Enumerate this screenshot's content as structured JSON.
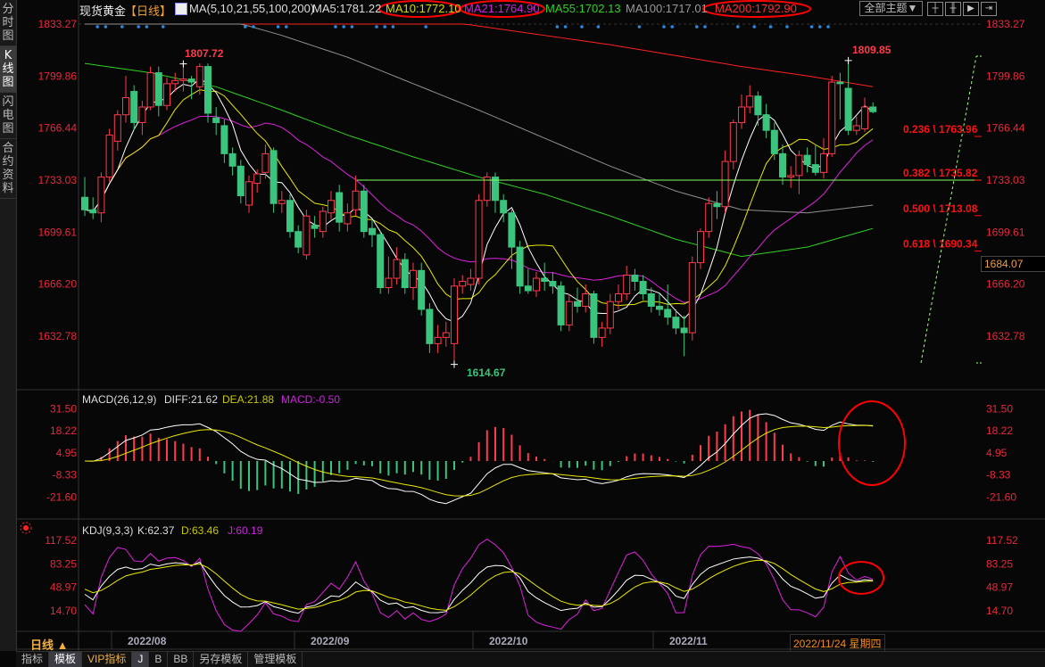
{
  "sidebar": {
    "tabs": [
      {
        "label": "分时图",
        "active": false
      },
      {
        "label": "K线图",
        "active": true
      },
      {
        "label": "闪电图",
        "active": false
      },
      {
        "label": "合约资料",
        "active": false
      }
    ]
  },
  "header": {
    "symbol": "现货黄金",
    "period_tag": "【日线】",
    "ma_params": "MA(5,10,21,55,100,200)",
    "ma5": "MA5:1781.22",
    "ma10": "MA10:1772.10",
    "ma21": "MA21:1764.90",
    "ma55": "MA55:1702.13",
    "ma100": "MA100:1717.01",
    "ma200": "MA200:1792.90",
    "theme_button": "全部主题▼"
  },
  "colors": {
    "up": "#ff3b4b",
    "down": "#3ac47d",
    "ma5": "#ffffff",
    "ma10": "#e8e800",
    "ma21": "#e020e0",
    "ma55": "#30d020",
    "ma100": "#909090",
    "ma200": "#ff2020",
    "axis_text": "#e8283c",
    "highlight": "#ff0000"
  },
  "price_axis": {
    "ticks": [
      "1833.27",
      "1799.86",
      "1766.44",
      "1733.03",
      "1699.61",
      "1666.20",
      "1632.78"
    ],
    "current_price": "1684.07"
  },
  "annotations": {
    "high1": "1807.72",
    "high2": "1809.85",
    "low": "1614.67"
  },
  "fibonacci": [
    {
      "label": "0.236 \\ 1763.96"
    },
    {
      "label": "0.382 \\ 1735.82"
    },
    {
      "label": "0.500 \\ 1713.08"
    },
    {
      "label": "0.618 \\ 1690.34"
    }
  ],
  "macd": {
    "title": "MACD(26,12,9)",
    "diff": "DIFF:21.62",
    "dea": "DEA:21.88",
    "macd": "MACD:-0.50",
    "ticks": [
      "31.50",
      "18.22",
      "4.95",
      "-8.33",
      "-21.60"
    ]
  },
  "kdj": {
    "title": "KDJ(9,3,3)",
    "k": "K:62.37",
    "d": "D:63.46",
    "j": "J:60.19",
    "ticks": [
      "117.52",
      "83.25",
      "48.97",
      "14.70"
    ]
  },
  "date_axis": {
    "labels": [
      "2022/08",
      "2022/09",
      "2022/10",
      "2022/11"
    ],
    "period": "日线 ▲",
    "current_date": "2022/11/24 星期四"
  },
  "bottom_tabs": [
    {
      "label": "指标"
    },
    {
      "label": "模板",
      "active": true
    },
    {
      "label": "VIP指标",
      "vip": true
    },
    {
      "label": "J",
      "active": true
    },
    {
      "label": "B"
    },
    {
      "label": "BB"
    },
    {
      "label": "另存模板"
    },
    {
      "label": "管理模板"
    }
  ],
  "chart_data": {
    "type": "candlestick",
    "ylim": [
      1614.67,
      1833.27
    ],
    "candles_ohlc": [
      [
        1722,
        1735,
        1710,
        1714
      ],
      [
        1714,
        1722,
        1708,
        1712
      ],
      [
        1712,
        1738,
        1706,
        1735
      ],
      [
        1735,
        1766,
        1732,
        1762
      ],
      [
        1758,
        1778,
        1752,
        1775
      ],
      [
        1775,
        1800,
        1770,
        1786
      ],
      [
        1790,
        1794,
        1765,
        1770
      ],
      [
        1770,
        1784,
        1762,
        1780
      ],
      [
        1780,
        1806,
        1778,
        1802
      ],
      [
        1802,
        1806,
        1774,
        1781
      ],
      [
        1781,
        1799,
        1778,
        1795
      ],
      [
        1795,
        1802,
        1790,
        1797
      ],
      [
        1797,
        1807.72,
        1790,
        1798
      ],
      [
        1798,
        1800,
        1785,
        1796
      ],
      [
        1793,
        1808,
        1788,
        1806
      ],
      [
        1806,
        1808,
        1770,
        1776
      ],
      [
        1773,
        1780,
        1762,
        1770
      ],
      [
        1768,
        1772,
        1744,
        1750
      ],
      [
        1750,
        1754,
        1736,
        1742
      ],
      [
        1742,
        1746,
        1718,
        1723
      ],
      [
        1717,
        1736,
        1712,
        1732
      ],
      [
        1731,
        1740,
        1725,
        1737
      ],
      [
        1738,
        1756,
        1734,
        1750
      ],
      [
        1752,
        1754,
        1712,
        1718
      ],
      [
        1718,
        1726,
        1712,
        1720
      ],
      [
        1720,
        1724,
        1696,
        1700
      ],
      [
        1700,
        1704,
        1686,
        1690
      ],
      [
        1685,
        1714,
        1682,
        1710
      ],
      [
        1704,
        1710,
        1696,
        1702
      ],
      [
        1700,
        1716,
        1696,
        1713
      ],
      [
        1712,
        1726,
        1708,
        1720
      ],
      [
        1725,
        1730,
        1700,
        1706
      ],
      [
        1705,
        1718,
        1700,
        1712
      ],
      [
        1714,
        1736,
        1710,
        1726
      ],
      [
        1726,
        1730,
        1696,
        1700
      ],
      [
        1702,
        1708,
        1690,
        1698
      ],
      [
        1698,
        1700,
        1660,
        1664
      ],
      [
        1664,
        1684,
        1660,
        1670
      ],
      [
        1670,
        1690,
        1666,
        1682
      ],
      [
        1682,
        1686,
        1660,
        1664
      ],
      [
        1664,
        1680,
        1656,
        1675
      ],
      [
        1675,
        1680,
        1646,
        1650
      ],
      [
        1650,
        1654,
        1622,
        1628
      ],
      [
        1628,
        1640,
        1622,
        1632
      ],
      [
        1632,
        1642,
        1626,
        1635
      ],
      [
        1628,
        1670,
        1614.67,
        1665
      ],
      [
        1665,
        1672,
        1660,
        1668
      ],
      [
        1666,
        1676,
        1662,
        1670
      ],
      [
        1670,
        1724,
        1666,
        1720
      ],
      [
        1720,
        1738,
        1716,
        1735
      ],
      [
        1735,
        1738,
        1712,
        1720
      ],
      [
        1720,
        1724,
        1706,
        1712
      ],
      [
        1712,
        1714,
        1676,
        1690
      ],
      [
        1690,
        1694,
        1660,
        1665
      ],
      [
        1665,
        1676,
        1660,
        1662
      ],
      [
        1662,
        1674,
        1658,
        1670
      ],
      [
        1670,
        1680,
        1662,
        1668
      ],
      [
        1668,
        1674,
        1660,
        1665
      ],
      [
        1665,
        1668,
        1636,
        1640
      ],
      [
        1640,
        1660,
        1636,
        1655
      ],
      [
        1655,
        1664,
        1648,
        1652
      ],
      [
        1652,
        1666,
        1648,
        1660
      ],
      [
        1660,
        1662,
        1628,
        1632
      ],
      [
        1632,
        1642,
        1626,
        1638
      ],
      [
        1638,
        1660,
        1634,
        1655
      ],
      [
        1655,
        1666,
        1650,
        1660
      ],
      [
        1660,
        1678,
        1656,
        1672
      ],
      [
        1672,
        1676,
        1662,
        1668
      ],
      [
        1668,
        1672,
        1656,
        1660
      ],
      [
        1660,
        1664,
        1648,
        1652
      ],
      [
        1652,
        1660,
        1646,
        1650
      ],
      [
        1650,
        1666,
        1640,
        1645
      ],
      [
        1645,
        1650,
        1634,
        1638
      ],
      [
        1638,
        1646,
        1620,
        1635
      ],
      [
        1635,
        1684,
        1630,
        1680
      ],
      [
        1680,
        1702,
        1676,
        1700
      ],
      [
        1700,
        1722,
        1696,
        1718
      ],
      [
        1718,
        1726,
        1708,
        1716
      ],
      [
        1716,
        1752,
        1712,
        1745
      ],
      [
        1745,
        1772,
        1740,
        1770
      ],
      [
        1770,
        1788,
        1766,
        1780
      ],
      [
        1780,
        1794,
        1776,
        1787
      ],
      [
        1787,
        1790,
        1768,
        1775
      ],
      [
        1775,
        1782,
        1760,
        1765
      ],
      [
        1765,
        1770,
        1746,
        1750
      ],
      [
        1750,
        1756,
        1730,
        1735
      ],
      [
        1735,
        1742,
        1728,
        1736
      ],
      [
        1736,
        1752,
        1724,
        1749
      ],
      [
        1749,
        1754,
        1738,
        1743
      ],
      [
        1743,
        1756,
        1736,
        1738
      ],
      [
        1738,
        1760,
        1734,
        1750
      ],
      [
        1750,
        1800,
        1748,
        1796
      ],
      [
        1796,
        1802,
        1772,
        1795
      ],
      [
        1792,
        1809.85,
        1762,
        1765
      ],
      [
        1765,
        1774,
        1762,
        1768
      ],
      [
        1766,
        1786,
        1764,
        1780
      ],
      [
        1780,
        1783,
        1776,
        1777
      ]
    ],
    "ma55_samples": [
      1808,
      1802,
      1793,
      1778,
      1762,
      1748,
      1735,
      1724,
      1710,
      1695,
      1684,
      1690,
      1702
    ],
    "ma100_samples": [
      1858,
      1848,
      1838,
      1826,
      1812,
      1795,
      1778,
      1760,
      1742,
      1726,
      1714,
      1712,
      1717
    ],
    "ma200_samples": [
      1880,
      1870,
      1860,
      1851,
      1845,
      1838,
      1832,
      1826,
      1820,
      1813,
      1806,
      1800,
      1793
    ],
    "fib_levels": [
      1763.96,
      1735.82,
      1713.08,
      1690.34
    ],
    "support_line": 1733.03,
    "event_marker_candles": [
      1,
      2,
      4,
      6,
      7,
      9,
      19,
      20,
      23,
      24,
      30,
      31,
      32,
      35,
      36,
      37,
      41,
      57,
      58,
      60,
      62,
      67,
      70,
      71,
      74,
      75,
      79,
      81,
      83,
      85,
      88,
      89,
      90
    ]
  }
}
